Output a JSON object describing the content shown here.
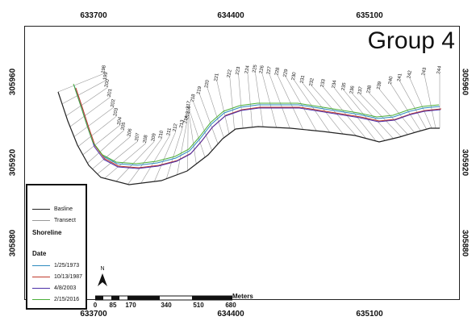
{
  "map_title": "Group 4",
  "x_ticks": [
    "633700",
    "634400",
    "635100"
  ],
  "y_ticks": [
    "305960",
    "305920",
    "305880"
  ],
  "transects": [
    "198",
    "199",
    "200",
    "201",
    "202",
    "203",
    "204",
    "205",
    "206",
    "207",
    "208",
    "209",
    "210",
    "211",
    "212",
    "213",
    "214",
    "215",
    "216",
    "217",
    "218",
    "219",
    "220",
    "221",
    "222",
    "223",
    "224",
    "225",
    "226",
    "227",
    "228",
    "229",
    "230",
    "231",
    "232",
    "233",
    "234",
    "235",
    "236",
    "237",
    "238",
    "239",
    "240",
    "241",
    "242",
    "243",
    "244"
  ],
  "legend": {
    "basline": "Basline",
    "transect": "Transect",
    "shoreline": "Shoreline",
    "date_header": "Date",
    "dates": [
      {
        "label": "1/25/1973",
        "color": "#2e8bbf"
      },
      {
        "label": "10/13/1987",
        "color": "#c0392b"
      },
      {
        "label": "4/8/2003",
        "color": "#4b2ea8"
      },
      {
        "label": "2/15/2016",
        "color": "#4caf3a"
      }
    ]
  },
  "north_label": "N",
  "scale": {
    "labels": [
      "0",
      "85",
      "170",
      "340",
      "510",
      "680"
    ],
    "unit": "Meters"
  },
  "colors": {
    "baseline": "#222222",
    "transect": "#999999"
  }
}
